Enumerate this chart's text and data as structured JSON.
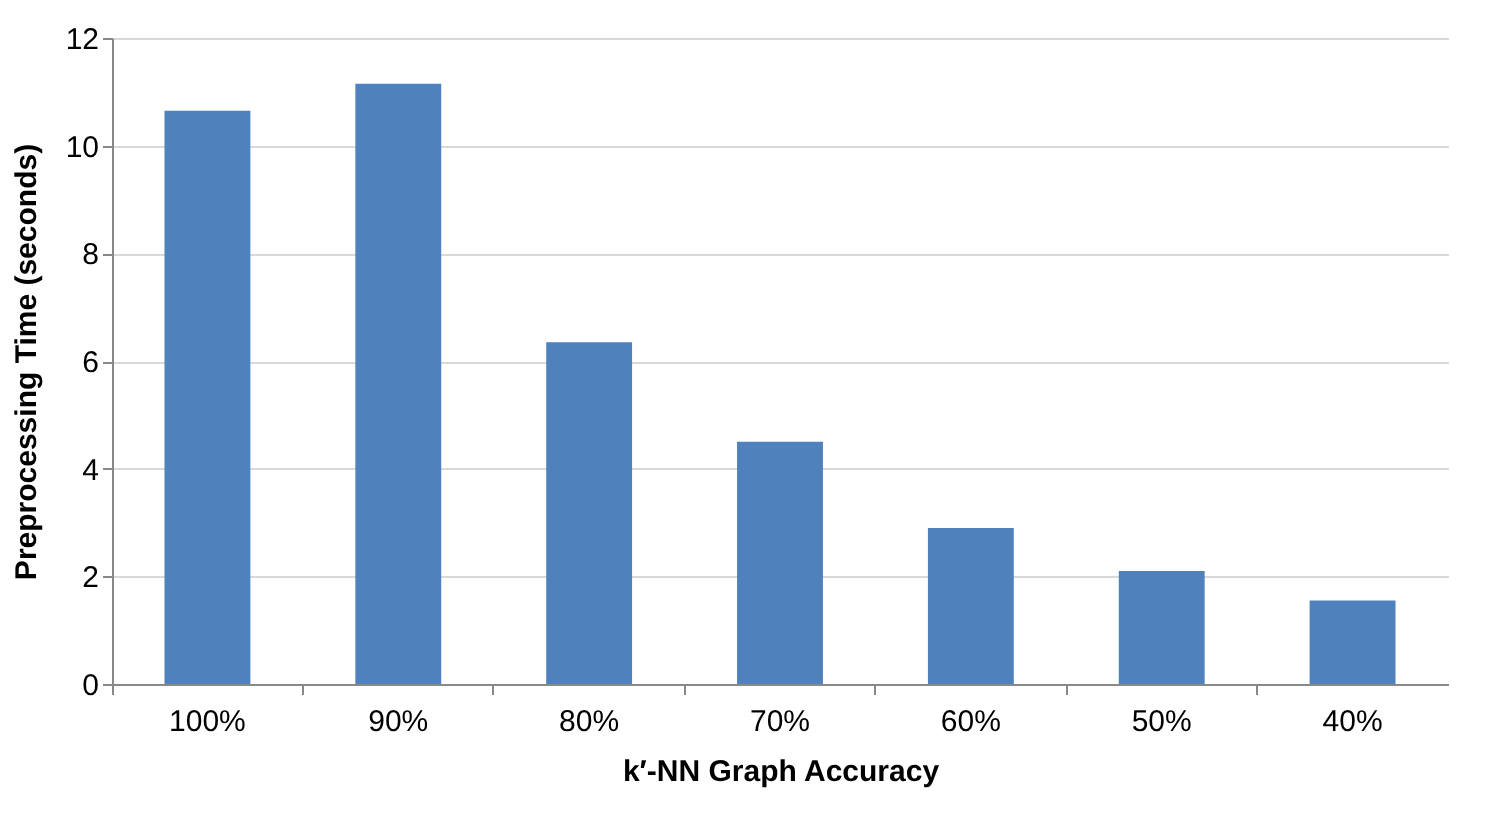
{
  "chart_data": {
    "type": "bar",
    "xlabel": "k′-NN Graph Accuracy",
    "ylabel": "Preprocessing Time (seconds)",
    "categories": [
      "100%",
      "90%",
      "80%",
      "70%",
      "60%",
      "50%",
      "40%"
    ],
    "values": [
      10.65,
      11.15,
      6.35,
      4.5,
      2.9,
      2.1,
      1.55
    ],
    "color": "#4f81bd",
    "ylim": [
      0,
      12
    ],
    "yticks": [
      0,
      2,
      4,
      6,
      8,
      10,
      12
    ],
    "grid": "y"
  }
}
